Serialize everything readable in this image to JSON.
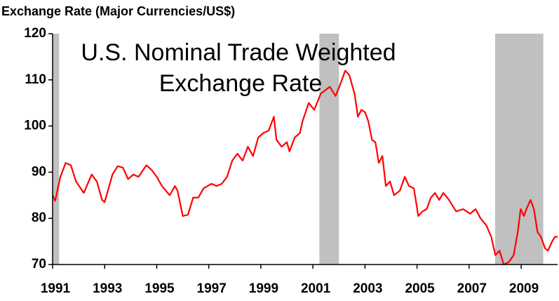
{
  "chart_data": {
    "type": "line",
    "title": "Exchange Rate (Major Currencies/US$)",
    "annotation": [
      "U.S. Nominal Trade Weighted",
      "Exchange Rate"
    ],
    "color": "#ff0000",
    "shade_color": "#c0c0c0",
    "shading": [
      [
        1991.0,
        1991.25
      ],
      [
        2001.25,
        2002.0
      ],
      [
        2008.0,
        2009.85
      ]
    ],
    "x": [
      1991.0,
      1991.1,
      1991.3,
      1991.5,
      1991.7,
      1991.9,
      1992.2,
      1992.5,
      1992.7,
      1992.9,
      1993.0,
      1993.3,
      1993.5,
      1993.7,
      1993.9,
      1994.1,
      1994.3,
      1994.6,
      1994.8,
      1995.0,
      1995.2,
      1995.5,
      1995.7,
      1995.8,
      1996.0,
      1996.2,
      1996.4,
      1996.6,
      1996.8,
      1997.1,
      1997.3,
      1997.5,
      1997.7,
      1997.9,
      1998.1,
      1998.3,
      1998.5,
      1998.7,
      1998.9,
      1999.1,
      1999.3,
      1999.5,
      1999.6,
      1999.8,
      2000.0,
      2000.1,
      2000.3,
      2000.5,
      2000.6,
      2000.84,
      2001.05,
      2001.3,
      2001.65,
      2001.87,
      2002.05,
      2002.24,
      2002.4,
      2002.6,
      2002.73,
      2002.86,
      2003.0,
      2003.13,
      2003.27,
      2003.4,
      2003.53,
      2003.67,
      2003.8,
      2003.96,
      2004.12,
      2004.34,
      2004.53,
      2004.69,
      2004.88,
      2005.05,
      2005.21,
      2005.37,
      2005.53,
      2005.69,
      2005.85,
      2006.01,
      2006.23,
      2006.5,
      2006.77,
      2007.04,
      2007.25,
      2007.44,
      2007.66,
      2007.85,
      2008.01,
      2008.17,
      2008.33,
      2008.52,
      2008.71,
      2008.87,
      2008.98,
      2009.11,
      2009.2,
      2009.36,
      2009.49,
      2009.63,
      2009.76,
      2009.92,
      2010.03,
      2010.19,
      2010.3,
      2010.4
    ],
    "values": [
      85,
      83.8,
      89,
      92,
      91.5,
      88,
      85.5,
      89.5,
      88,
      84,
      83.5,
      89.5,
      91.3,
      91,
      88.5,
      89.5,
      89,
      91.5,
      90.5,
      89,
      87,
      85,
      87,
      86,
      80.5,
      80.8,
      84.5,
      84.5,
      86.5,
      87.5,
      87,
      87.5,
      89,
      92.5,
      94,
      92.5,
      95.5,
      93.5,
      97.5,
      98.5,
      99,
      102,
      97,
      95.5,
      96.5,
      94.5,
      97.5,
      98.5,
      101,
      105,
      103.5,
      107,
      108.5,
      106.5,
      109,
      112,
      111,
      107,
      102,
      103.5,
      103,
      101,
      97,
      96.5,
      92,
      93.5,
      87,
      88,
      85,
      86,
      89,
      87,
      86.5,
      80.5,
      81.5,
      82,
      84.5,
      85.5,
      84,
      85.5,
      84,
      81.5,
      82,
      81,
      82,
      80,
      78.5,
      76,
      72,
      73,
      70,
      70.5,
      72,
      77,
      82,
      80.5,
      82,
      84,
      82,
      77,
      76,
      73.5,
      73,
      75,
      76,
      76
    ],
    "xlim": [
      1991,
      2010.4
    ],
    "ylim": [
      70,
      120
    ],
    "yticks": [
      70,
      80,
      90,
      100,
      110,
      120
    ],
    "xticks": [
      1991,
      1993,
      1995,
      1997,
      1999,
      2001,
      2003,
      2005,
      2007,
      2009
    ]
  }
}
